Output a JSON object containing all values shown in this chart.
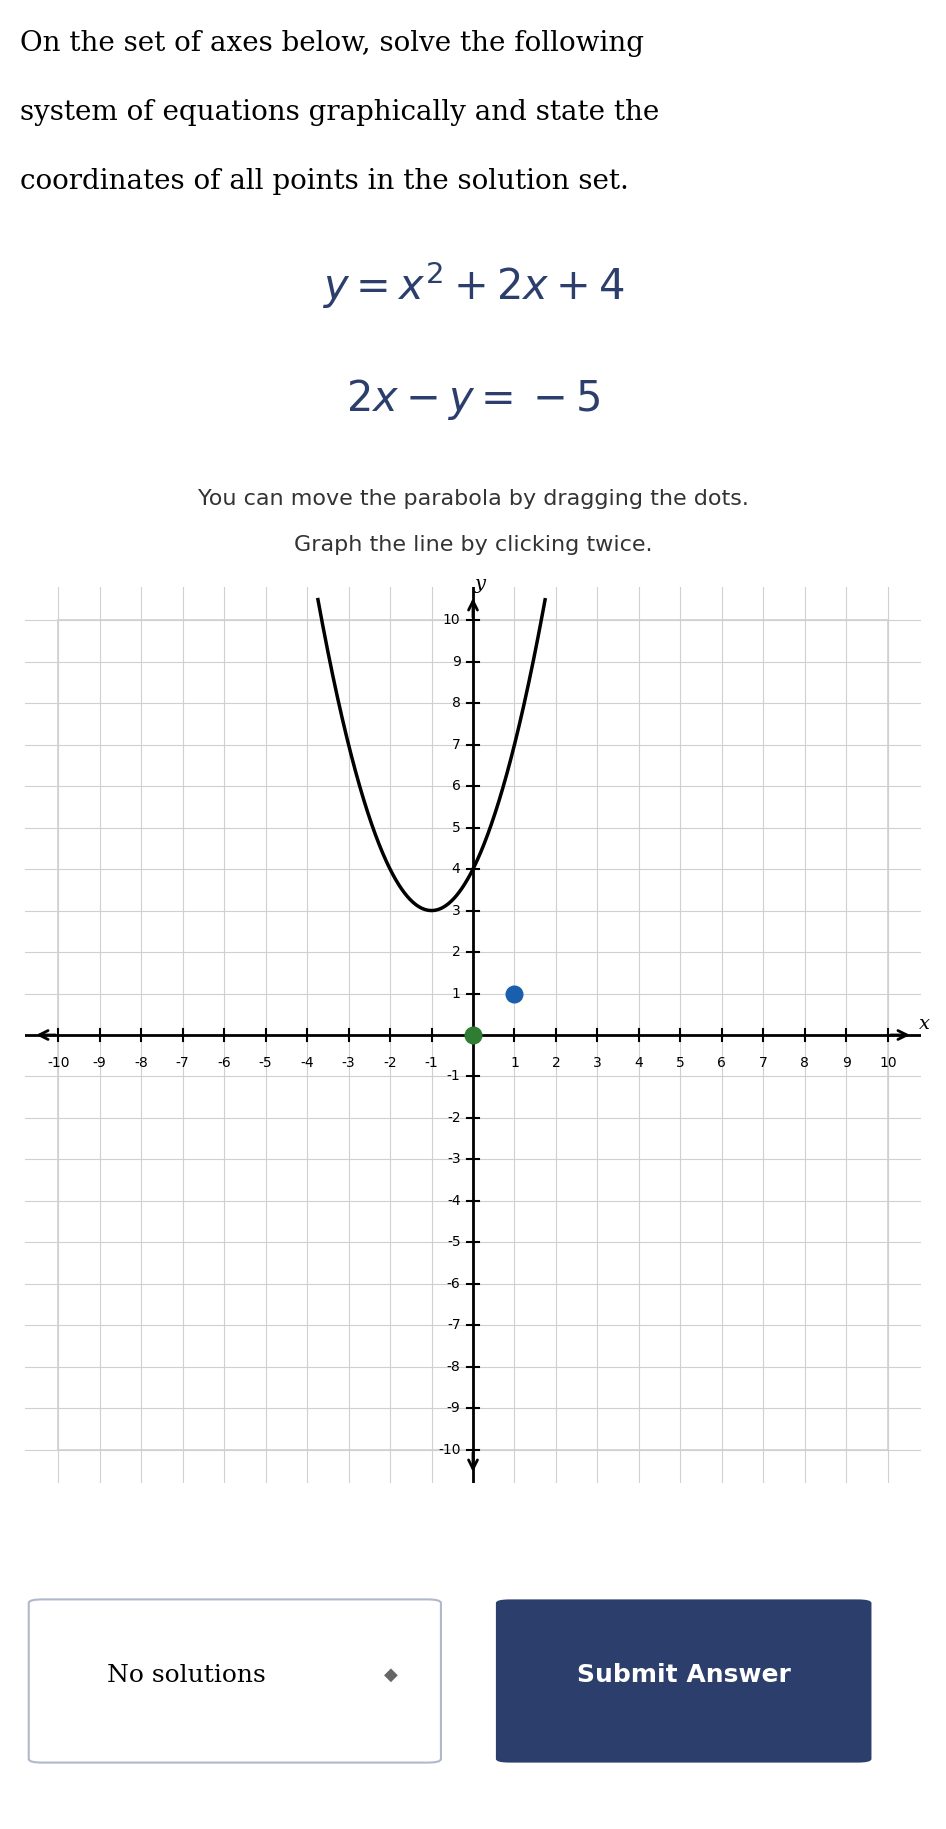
{
  "title_line1": "On the set of axes below, solve the following",
  "title_line2": "system of equations graphically and state the",
  "title_line3": "coordinates of all points in the solution set.",
  "eq1_latex": "$y = x^2 + 2x + 4$",
  "eq2_latex": "$2x - y = -5$",
  "instruction1": "You can move the parabola by dragging the dots.",
  "instruction2": "Graph the line by clicking twice.",
  "xmin": -10,
  "xmax": 10,
  "ymin": -10,
  "ymax": 10,
  "background_color": "#ffffff",
  "grid_color": "#d0d0d0",
  "axis_color": "#000000",
  "parabola_color": "#000000",
  "green_dot_x": 0,
  "green_dot_y": 0,
  "blue_dot_x": 1,
  "blue_dot_y": 1,
  "green_dot_color": "#2e7d32",
  "blue_dot_color": "#1a5fad",
  "equation_color": "#2c3e6b",
  "text_color": "#000000",
  "instruction_color": "#333333",
  "no_solutions_text": "No solutions",
  "submit_text": "Submit Answer",
  "button_bg": "#2c3e6b",
  "button_text_color": "#ffffff",
  "panel_bg": "#e8eaf0",
  "nosol_box_bg": "#ffffff",
  "nosol_box_border": "#b0b8cc"
}
